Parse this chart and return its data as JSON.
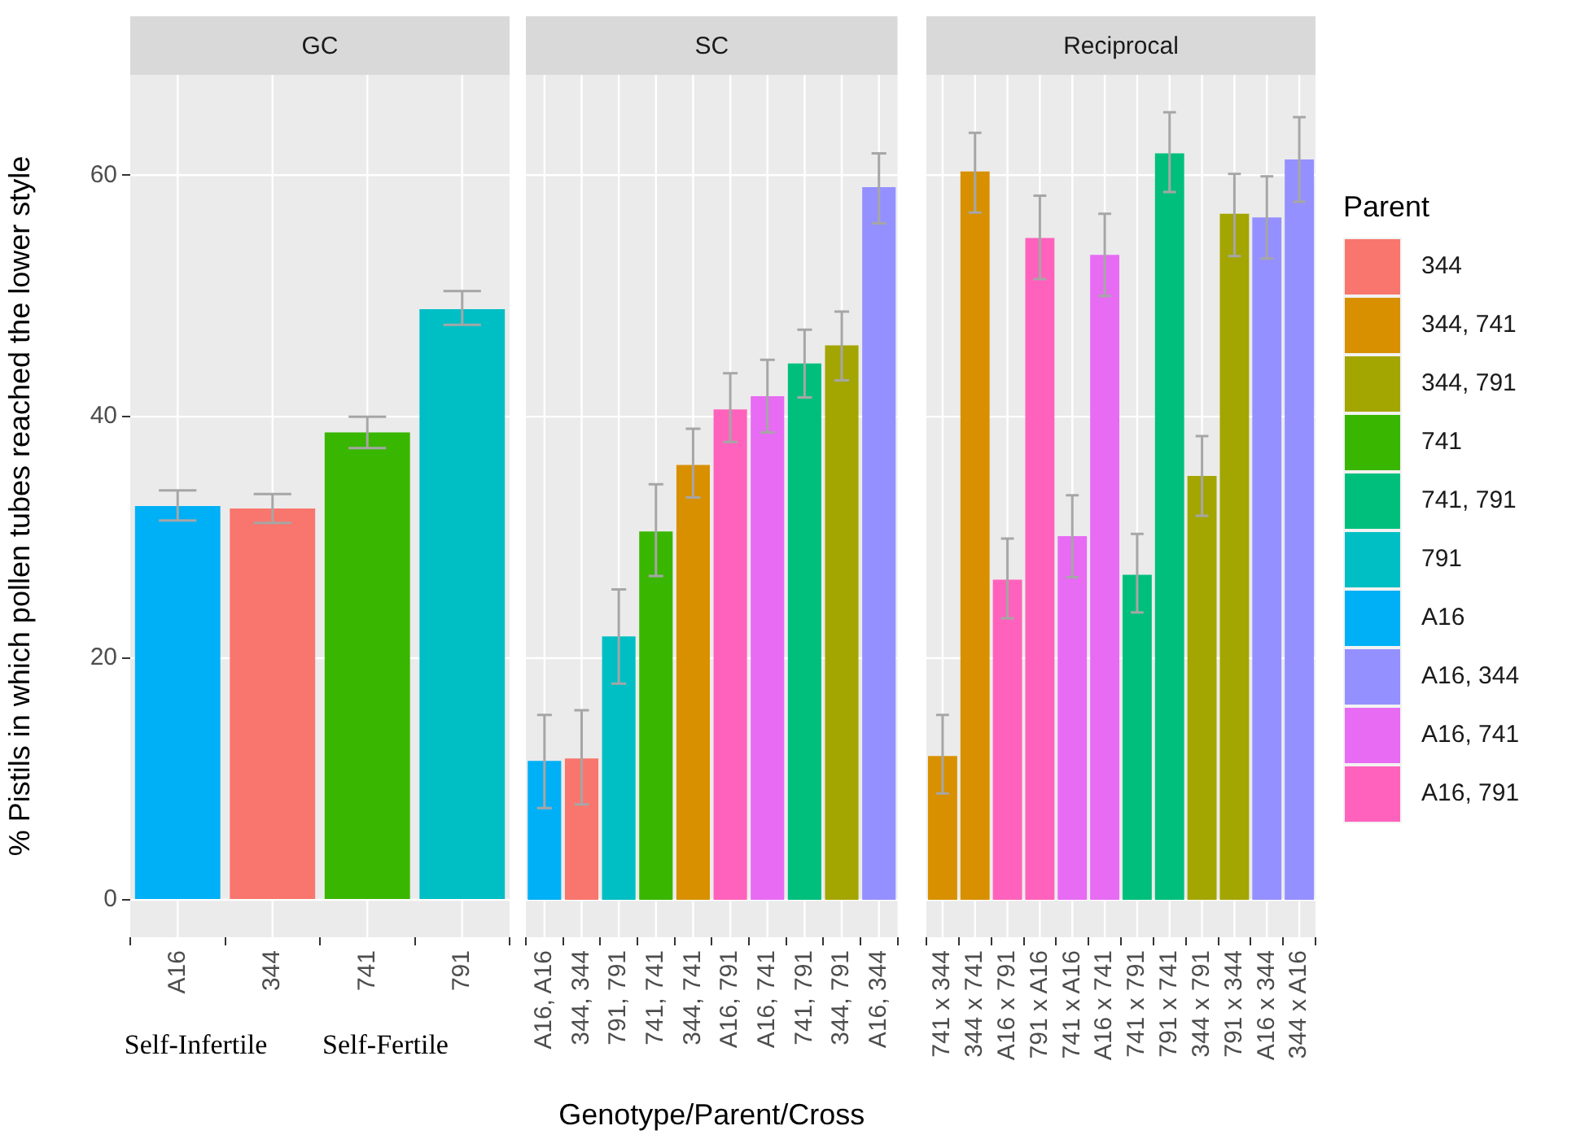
{
  "chart_data": [
    {
      "type": "bar",
      "title": "GC",
      "ylabel": "% Pistils in which pollen tubes reached the lower style",
      "categories": [
        "A16",
        "344",
        "741",
        "791"
      ],
      "grid": true,
      "legend": false,
      "ylim": [
        -3.1,
        68.3
      ],
      "yticks": [
        0,
        20,
        40,
        60
      ],
      "annotations": [
        "Self-Infertile",
        "Self-Fertile"
      ],
      "values": [
        32.6,
        32.4,
        38.7,
        48.9
      ],
      "colors": [
        "#00b0f6",
        "#f8766d",
        "#39b600",
        "#00bfc4"
      ],
      "errors": [
        [
          31.4,
          33.9
        ],
        [
          31.2,
          33.6
        ],
        [
          37.4,
          40.0
        ],
        [
          47.6,
          50.4
        ]
      ]
    },
    {
      "type": "bar",
      "title": "SC",
      "xlabel": "Genotype/Parent/Cross",
      "categories": [
        "A16, A16",
        "344, 344",
        "791, 791",
        "741, 741",
        "344, 741",
        "A16, 791",
        "A16, 741",
        "741, 791",
        "344, 791",
        "A16, 344"
      ],
      "grid": true,
      "legend": false,
      "tick_labels": "x",
      "ylim": [
        -3.1,
        68.3
      ],
      "yticks": [
        0,
        20,
        40,
        60
      ],
      "values": [
        11.5,
        11.7,
        21.8,
        30.5,
        36.0,
        40.6,
        41.7,
        44.4,
        45.9,
        59.0
      ],
      "colors": [
        "#00b0f6",
        "#f8766d",
        "#00bfc4",
        "#39b600",
        "#d89000",
        "#ff62bc",
        "#e76bf3",
        "#00bf7d",
        "#a3a500",
        "#9590ff"
      ],
      "errors": [
        [
          7.6,
          15.3
        ],
        [
          7.9,
          15.7
        ],
        [
          17.9,
          25.7
        ],
        [
          26.8,
          34.4
        ],
        [
          33.3,
          39.0
        ],
        [
          37.9,
          43.6
        ],
        [
          38.7,
          44.7
        ],
        [
          41.6,
          47.2
        ],
        [
          43.0,
          48.7
        ],
        [
          56.0,
          61.8
        ]
      ]
    },
    {
      "type": "bar",
      "title": "Reciprocal",
      "categories": [
        "741 x 344",
        "344 x 741",
        "A16 x 791",
        "791 x A16",
        "741 x A16",
        "A16 x 741",
        "741 x 791",
        "791 x 741",
        "344 x 791",
        "791 x 344",
        "A16 x 344",
        "344 x A16"
      ],
      "stacked": true,
      "grid": true,
      "legend": "right",
      "legend_title": "Parent",
      "tick_labels": "x",
      "ylim": [
        -3.1,
        68.3
      ],
      "yticks": [
        0,
        20,
        40,
        60
      ],
      "series": [
        {
          "name": "344",
          "color": "#f8766d",
          "values": [
            null,
            null,
            null,
            null,
            null,
            null,
            null,
            null,
            null,
            null,
            null,
            null
          ]
        },
        {
          "name": "344, 741",
          "color": "#d89000",
          "values": [
            11.9,
            60.3,
            null,
            null,
            null,
            null,
            null,
            null,
            null,
            null,
            null,
            null
          ],
          "errors": [
            [
              8.8,
              15.3
            ],
            [
              56.9,
              63.5
            ],
            null,
            null,
            null,
            null,
            null,
            null,
            null,
            null,
            null,
            null
          ]
        },
        {
          "name": "344, 791",
          "color": "#a3a500",
          "values": [
            null,
            null,
            null,
            null,
            null,
            null,
            null,
            null,
            35.1,
            56.8,
            null,
            null
          ],
          "errors": [
            null,
            null,
            null,
            null,
            null,
            null,
            null,
            null,
            [
              31.8,
              38.4
            ],
            [
              53.3,
              60.1
            ],
            null,
            null
          ]
        },
        {
          "name": "741",
          "color": "#39b600",
          "values": [
            null,
            null,
            null,
            null,
            null,
            null,
            null,
            null,
            null,
            null,
            null,
            null
          ]
        },
        {
          "name": "741, 791",
          "color": "#00bf7d",
          "values": [
            null,
            null,
            null,
            null,
            null,
            null,
            26.9,
            61.8,
            null,
            null,
            null,
            null
          ],
          "errors": [
            null,
            null,
            null,
            null,
            null,
            null,
            [
              23.8,
              30.3
            ],
            [
              58.6,
              65.2
            ],
            null,
            null,
            null,
            null
          ]
        },
        {
          "name": "791",
          "color": "#00bfc4",
          "values": [
            null,
            null,
            null,
            null,
            null,
            null,
            null,
            null,
            null,
            null,
            null,
            null
          ]
        },
        {
          "name": "A16",
          "color": "#00b0f6",
          "values": [
            null,
            null,
            null,
            null,
            null,
            null,
            null,
            null,
            null,
            null,
            null,
            null
          ]
        },
        {
          "name": "A16, 344",
          "color": "#9590ff",
          "values": [
            null,
            null,
            null,
            null,
            null,
            null,
            null,
            null,
            null,
            null,
            56.5,
            61.3
          ],
          "errors": [
            null,
            null,
            null,
            null,
            null,
            null,
            null,
            null,
            null,
            null,
            [
              53.1,
              59.9
            ],
            [
              57.8,
              64.8
            ]
          ]
        },
        {
          "name": "A16, 741",
          "color": "#e76bf3",
          "values": [
            null,
            null,
            null,
            null,
            30.1,
            53.4,
            null,
            null,
            null,
            null,
            null,
            null
          ],
          "errors": [
            null,
            null,
            null,
            null,
            [
              26.7,
              33.5
            ],
            [
              50.0,
              56.8
            ],
            null,
            null,
            null,
            null,
            null,
            null
          ]
        },
        {
          "name": "A16, 791",
          "color": "#ff62bc",
          "values": [
            null,
            null,
            26.5,
            54.8,
            null,
            null,
            null,
            null,
            null,
            null,
            null,
            null
          ],
          "errors": [
            null,
            null,
            [
              23.3,
              29.9
            ],
            [
              51.4,
              58.3
            ],
            null,
            null,
            null,
            null,
            null,
            null,
            null,
            null
          ]
        }
      ]
    }
  ]
}
